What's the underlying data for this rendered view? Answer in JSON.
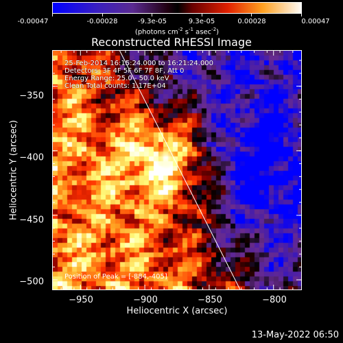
{
  "colorbar": {
    "tick_labels": [
      "-0.00047",
      "-0.00028",
      "-9.3e-05",
      "9.3e-05",
      "0.00028",
      "0.00047"
    ],
    "tick_values": [
      -0.00047,
      -0.00028,
      -9.3e-05,
      9.3e-05,
      0.00028,
      0.00047
    ],
    "units_main": "(photons cm",
    "units_sup1": "-2",
    "units_mid1": " s",
    "units_sup2": "-1",
    "units_mid2": " asec",
    "units_sup3": "-2",
    "units_end": ")"
  },
  "chart_data": {
    "type": "heatmap",
    "title": "Reconstructed RHESSI Image",
    "xlabel": "Heliocentric X (arcsec)",
    "ylabel": "Heliocentric Y (arcsec)",
    "xlim": [
      -972,
      -778
    ],
    "ylim": [
      -508,
      -322
    ],
    "x_ticks": [
      -950,
      -900,
      -850,
      -800
    ],
    "y_ticks": [
      -350,
      -400,
      -450,
      -500
    ],
    "x_tick_labels": [
      "−950",
      "−900",
      "−850",
      "−800"
    ],
    "y_tick_labels": [
      "−350",
      "−400",
      "−450",
      "−500"
    ],
    "peak": [
      -884,
      -405
    ],
    "limb_line": {
      "x": [
        -920,
        -826
      ],
      "y": [
        -322,
        -508
      ]
    },
    "colormap": [
      "#0000ff",
      "#4b1fa8",
      "#6a2c8e",
      "#000000",
      "#8a0000",
      "#ff3000",
      "#ffa020",
      "#ffff80",
      "#ffffff"
    ]
  },
  "info": {
    "line1": "25-Feb-2014 16:15:24.000 to 16:21:24.000",
    "line2": "Detectors: 3F 4F 5F 6F 7F 8F, Att 0",
    "line3": "Energy Range: 25.0 - 50.0 keV",
    "line4": "Clean    Total counts: 1.17E+04"
  },
  "peak_label": "Position of Peak = [-884,-405]",
  "timestamp": "13-May-2022 06:50"
}
